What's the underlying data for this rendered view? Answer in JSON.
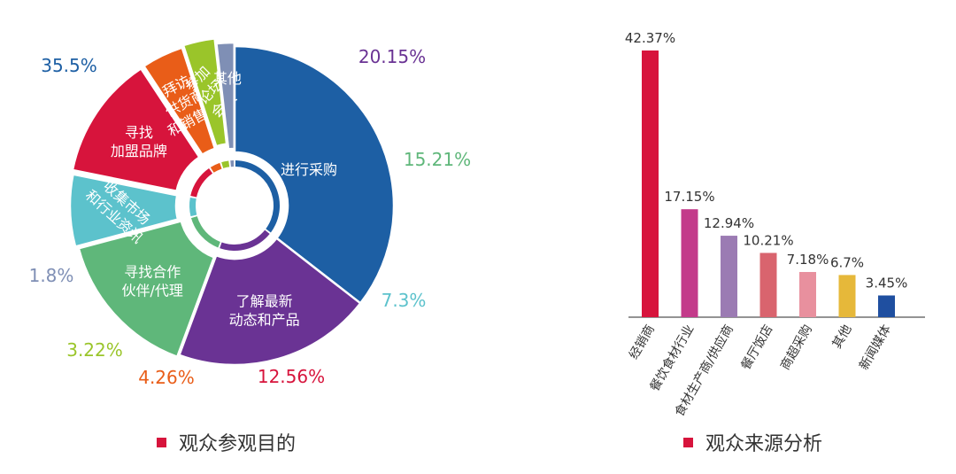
{
  "chart_data": [
    {
      "type": "pie",
      "caption": "观众参观目的",
      "marker_color": "#d7143c",
      "slices": [
        {
          "label": "进行采购",
          "value": 35.5,
          "value_label": "35.5%",
          "color": "#1d5fa4",
          "label_color": "#1d5fa4"
        },
        {
          "label": "了解最新\n动态和产品",
          "value": 20.15,
          "value_label": "20.15%",
          "color": "#6a3394",
          "label_color": "#6a3394"
        },
        {
          "label": "寻找合作\n伙伴/代理",
          "value": 15.21,
          "value_label": "15.21%",
          "color": "#5fb77a",
          "label_color": "#5fb77a"
        },
        {
          "label": "收集市场\n和行业资讯",
          "value": 7.3,
          "value_label": "7.3%",
          "color": "#5cc2cc",
          "label_color": "#5cc2cc"
        },
        {
          "label": "寻找\n加盟品牌",
          "value": 12.56,
          "value_label": "12.56%",
          "color": "#d7143c",
          "label_color": "#d7143c"
        },
        {
          "label": "拜访\n供货商\n和销售商",
          "value": 4.26,
          "value_label": "4.26%",
          "color": "#e95d18",
          "label_color": "#e95d18"
        },
        {
          "label": "参加\n论坛\n会议",
          "value": 3.22,
          "value_label": "3.22%",
          "color": "#9ac52a",
          "label_color": "#9ac52a"
        },
        {
          "label": "其他",
          "value": 1.8,
          "value_label": "1.8%",
          "color": "#7f8fb5",
          "label_color": "#7f8fb5"
        }
      ]
    },
    {
      "type": "bar",
      "caption": "观众来源分析",
      "marker_color": "#d7143c",
      "categories": [
        "经销商",
        "餐饮食材行业",
        "食材生产商/供应商",
        "餐厅饭店",
        "商超采购",
        "其他",
        "新闻媒体"
      ],
      "values": [
        42.37,
        17.15,
        12.94,
        10.21,
        7.18,
        6.7,
        3.45
      ],
      "value_labels": [
        "42.37%",
        "17.15%",
        "12.94%",
        "10.21%",
        "7.18%",
        "6.7%",
        "3.45%"
      ],
      "colors": [
        "#d7143c",
        "#c33a8a",
        "#9b7bb3",
        "#d9646e",
        "#e8909e",
        "#e6b83a",
        "#1f4fa0"
      ],
      "ylim": [
        0,
        42.37
      ],
      "grid": false,
      "legend": "none"
    }
  ]
}
